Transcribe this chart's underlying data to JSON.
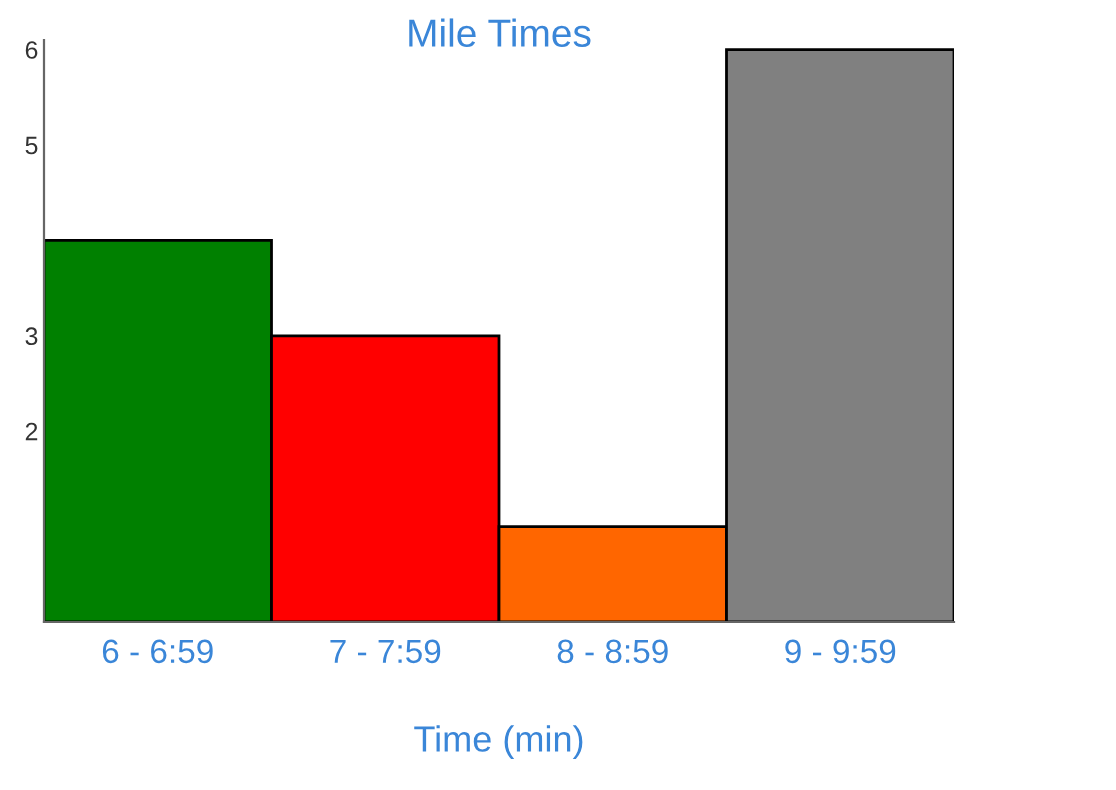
{
  "chart_data": {
    "type": "bar",
    "title": "Mile Times",
    "xlabel": "Time (min)",
    "categories": [
      "6 - 6:59",
      "7 - 7:59",
      "8 - 8:59",
      "9 - 9:59"
    ],
    "values": [
      4,
      3,
      1,
      6
    ],
    "colors": [
      "#008000",
      "#ff0000",
      "#ff6600",
      "#808080"
    ],
    "ylim": [
      0,
      6.1
    ],
    "yticks": [
      2,
      3,
      5,
      6
    ],
    "grid": false,
    "legend": false
  }
}
